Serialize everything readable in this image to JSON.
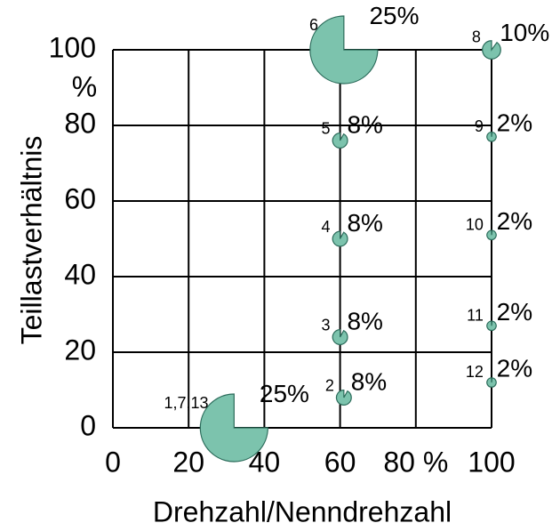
{
  "chart_data": {
    "type": "bubble",
    "xlabel": "Drehzahl/Nenndrehzahl",
    "ylabel": "Teillastverhältnis",
    "y_unit": "%",
    "xlim": [
      0,
      100
    ],
    "xticks": [
      0,
      20,
      40,
      60,
      {
        "value": 80,
        "label": "80 %"
      },
      100
    ],
    "ylim": [
      0,
      100
    ],
    "yticks": [
      0,
      20,
      40,
      60,
      80,
      100
    ],
    "grid": true,
    "color": "#7cc3ad",
    "point_labels": [
      "1,7,13",
      "2",
      "3",
      "4",
      "5",
      "6",
      "8",
      "9",
      "10",
      "11",
      "12"
    ],
    "x": [
      32,
      61,
      60,
      60,
      60,
      61,
      100,
      100,
      100,
      100,
      100
    ],
    "values": [
      0,
      8,
      24,
      50,
      76,
      100,
      100,
      77,
      51,
      27,
      12
    ],
    "sizes": [
      25,
      8,
      8,
      8,
      8,
      25,
      10,
      2,
      2,
      2,
      2
    ],
    "size_labels": [
      "25%",
      "8%",
      "8%",
      "8%",
      "8%",
      "25%",
      "10%",
      "2%",
      "2%",
      "2%",
      "2%"
    ]
  }
}
